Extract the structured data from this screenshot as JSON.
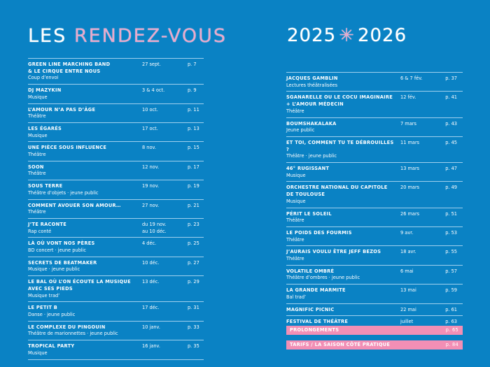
{
  "title_left": {
    "part1": "LES",
    "part2": "RENDEZ-VOUS"
  },
  "title_right": {
    "year1": "2025",
    "separator": "✳",
    "year2": "2026"
  },
  "left_events": [
    {
      "name": "GREEN LINE MARCHING BAND",
      "name2": "& LE CIRQUE ENTRE NOUS",
      "sub": "Coup d’envoi",
      "date": "27 sept.",
      "page": "p. 7"
    },
    {
      "name": "DJ MAZYKIN",
      "sub": "Musique",
      "date": "3 & 4 oct.",
      "page": "p. 9"
    },
    {
      "name": "L’AMOUR N’A PAS D’ÂGE",
      "sub": "Théâtre",
      "date": "10 oct.",
      "page": "p. 11"
    },
    {
      "name": "LES ÉGARÉS",
      "sub": "Musique",
      "date": "17 oct.",
      "page": "p. 13"
    },
    {
      "name": "UNE PIÈCE SOUS INFLUENCE",
      "sub": "Théâtre",
      "date": "8 nov.",
      "page": "p. 15"
    },
    {
      "name": "SOON",
      "sub": "Théâtre",
      "date": "12 nov.",
      "page": "p. 17"
    },
    {
      "name": "SOUS TERRE",
      "sub": "Théâtre d’objets · jeune public",
      "date": "19 nov.",
      "page": "p. 19"
    },
    {
      "name": "COMMENT AVOUER SON AMOUR…",
      "sub": "Théâtre",
      "date": "27 nov.",
      "page": "p. 21"
    },
    {
      "name": "J’TE RACONTE",
      "sub": "Rap conté",
      "date": "du 19 nov.",
      "date2": "au 10 déc.",
      "page": "p. 23"
    },
    {
      "name": "LÀ OÙ VONT NOS PÈRES",
      "sub": "BD concert · jeune public",
      "date": "4 déc.",
      "page": "p. 25"
    },
    {
      "name": "SECRETS DE BEATMAKER",
      "sub": "Musique · jeune public",
      "date": "10 déc.",
      "page": "p. 27"
    },
    {
      "name": "LE BAL OÙ L’ON ÉCOUTE LA MUSIQUE",
      "name2": "AVEC SES PIEDS",
      "sub": "Musique trad’",
      "date": "13 déc.",
      "page": "p. 29"
    },
    {
      "name": "LE PETIT B",
      "sub": "Danse · jeune public",
      "date": "17 déc.",
      "page": "p. 31"
    },
    {
      "name": "LE COMPLEXE DU PINGOUIN",
      "sub": "Théâtre de marionnettes · jeune public",
      "date": "10 janv.",
      "page": "p. 33"
    },
    {
      "name": "TROPICAL PARTY",
      "sub": "Musique",
      "date": "16 janv.",
      "page": "p. 35"
    }
  ],
  "right_events": [
    {
      "name": "JACQUES GAMBLIN",
      "sub": "Lectures théâtralisées",
      "date": "6 & 7 fév.",
      "page": "p. 37"
    },
    {
      "name": "SGANARELLE OU LE COCU IMAGINAIRE",
      "name2": "+ L’AMOUR MÉDECIN",
      "sub": "Théâtre",
      "date": "12 fév.",
      "page": "p. 41"
    },
    {
      "name": "BOUMSHAKALAKA",
      "sub": "Jeune public",
      "date": "7 mars",
      "page": "p. 43"
    },
    {
      "name": "ET TOI, COMMENT TU TE DÉBROUILLES ?",
      "sub": "Théâtre · jeune public",
      "date": "11 mars",
      "page": "p. 45"
    },
    {
      "name": "46° RUGISSANT",
      "sub": "Musique",
      "date": "13 mars",
      "page": "p. 47"
    },
    {
      "name": "ORCHESTRE NATIONAL DU CAPITOLE",
      "name2": "DE TOULOUSE",
      "sub": "Musique",
      "date": "20 mars",
      "page": "p. 49"
    },
    {
      "name": "PÉRIT LE SOLEIL",
      "sub": "Théâtre",
      "date": "26 mars",
      "page": "p. 51"
    },
    {
      "name": "LE POIDS DES FOURMIS",
      "sub": "Théâtre",
      "date": "9 avr.",
      "page": "p. 53"
    },
    {
      "name": "J’AURAIS VOULU ÊTRE JEFF BEZOS",
      "sub": "Théâtre",
      "date": "18 avr.",
      "page": "p. 55"
    },
    {
      "name": "VOLATILE OMBRÉ",
      "sub": "Théâtre d’ombres · jeune public",
      "date": "6 mai",
      "page": "p. 57"
    },
    {
      "name": "LA GRANDE MARMITE",
      "sub": "Bal trad’",
      "date": "13 mai",
      "page": "p. 59"
    },
    {
      "name": "MAGNIFIC PICNIC",
      "date": "22 mai",
      "page": "p. 61"
    },
    {
      "name": "FESTIVAL DE THÉÂTRE",
      "date": "juillet",
      "page": "p. 63"
    }
  ],
  "extras": [
    {
      "label": "PROLONGEMENTS",
      "page": "p. 65"
    },
    {
      "label": "TARIFS / LA SAISON CÔTÉ PRATIQUE",
      "page": "p. 84"
    }
  ],
  "colors": {
    "background": "#0a82c4",
    "pink": "#f28fb5",
    "rule": "#9fd0ee"
  }
}
